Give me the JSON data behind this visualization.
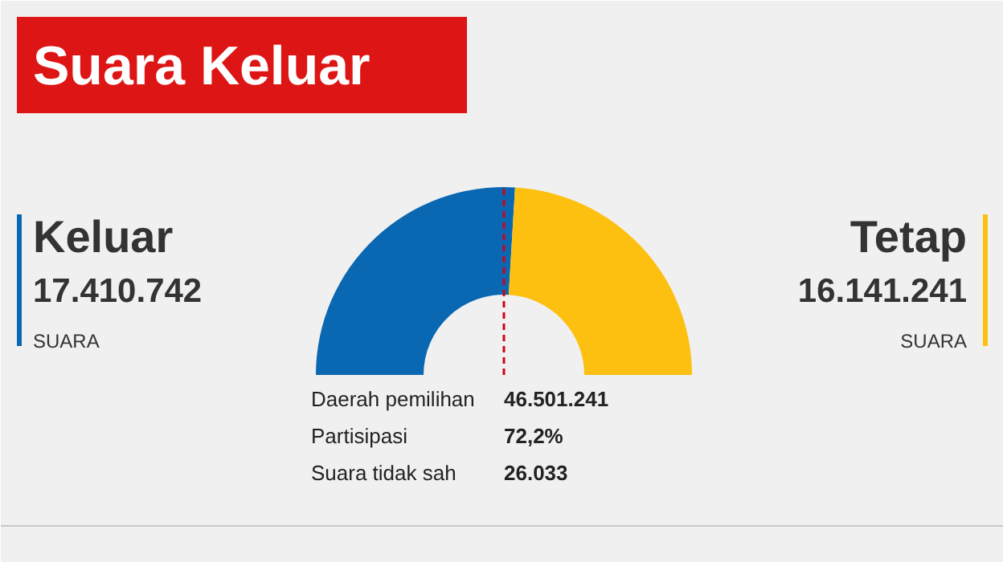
{
  "chart_data": {
    "type": "donut",
    "title": "Suara Keluar",
    "categories": [
      "Keluar",
      "Tetap"
    ],
    "values": [
      17410742,
      16141241
    ],
    "colors": [
      "#0a67b2",
      "#fdc010"
    ],
    "value_labels": [
      "17.410.742",
      "16.141.241"
    ],
    "needle": "Keluar",
    "annotations": [
      "SUARA",
      "SUARA",
      "Daerah pemilihan",
      "46.501.241",
      "Partisipasi",
      "72,2%",
      "Suara tidak sah",
      "26.033"
    ]
  }
}
